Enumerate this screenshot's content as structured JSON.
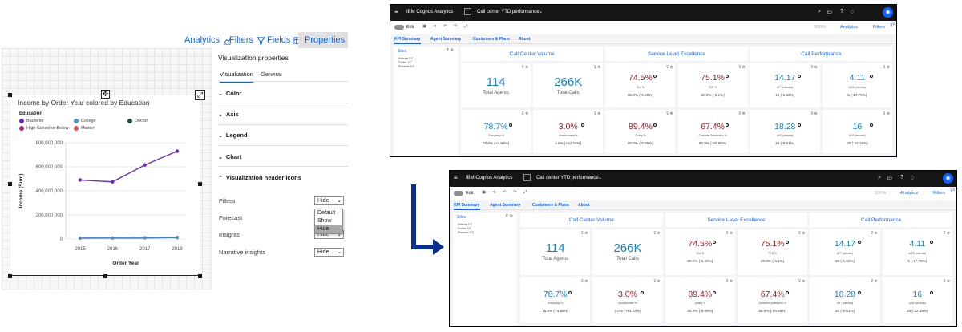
{
  "left": {
    "toptabs": {
      "analytics": "Analytics",
      "filters": "Filters",
      "fields": "Fields",
      "properties": "Properties"
    },
    "chart_title": "Income by Order Year colored by Education",
    "legend_title": "Education",
    "legend": [
      {
        "name": "Bachelor",
        "color": "#6f2dbd"
      },
      {
        "name": "College",
        "color": "#4a90d9"
      },
      {
        "name": "Doctor",
        "color": "#1d4d45"
      },
      {
        "name": "High School or Below",
        "color": "#a22a6a"
      },
      {
        "name": "Master",
        "color": "#e0505a"
      }
    ],
    "props_title": "Visualization properties",
    "subtabs": {
      "visualization": "Visualization",
      "general": "General"
    },
    "sections": {
      "color": "Color",
      "axis": "Axis",
      "legend": "Legend",
      "chart": "Chart",
      "header_icons": "Visualization header icons"
    },
    "rows": {
      "filters": "Filters",
      "forecast": "Forecast",
      "insights": "Insights",
      "narrative": "Narrative insights"
    },
    "hide": "Hide",
    "dropdown_options": [
      "Default",
      "Show",
      "Hide"
    ]
  },
  "chart_data": {
    "type": "line",
    "title": "Income by Order Year colored by Education",
    "xlabel": "Order Year",
    "ylabel": "Income (Sum)",
    "x": [
      "2015",
      "2016",
      "2017",
      "2018"
    ],
    "y_ticks": [
      "0",
      "200,000,000",
      "400,000,000",
      "600,000,000",
      "800,000,000"
    ],
    "ylim": [
      0,
      800000000
    ],
    "series": [
      {
        "name": "Bachelor",
        "color": "#6f2dbd",
        "values": [
          490000000,
          475000000,
          615000000,
          730000000
        ]
      },
      {
        "name": "College",
        "color": "#4a90d9",
        "values": [
          9000000,
          9000000,
          11000000,
          12000000
        ]
      },
      {
        "name": "Doctor",
        "color": "#1d4d45",
        "values": [
          7000000,
          8000000,
          9000000,
          10000000
        ]
      },
      {
        "name": "High School or Below",
        "color": "#a22a6a",
        "values": [
          6000000,
          7000000,
          9000000,
          11000000
        ]
      },
      {
        "name": "Master",
        "color": "#e0505a",
        "values": [
          8000000,
          9000000,
          14000000,
          16000000
        ]
      }
    ],
    "grid": true,
    "legend_position": "top-left"
  },
  "dashboard": {
    "app": "IBM Cognos Analytics",
    "report": "Call center YTD performance",
    "edit": "Edit",
    "zoom": "100%",
    "analytics": "Analytics",
    "filters": "Filters",
    "filter_count": "2",
    "tabs": [
      "KPI Summary",
      "Agent Summary",
      "Customers & Plans",
      "About"
    ],
    "sites_title": "Sites",
    "sites": [
      "Atlanta CC",
      "Dallas CC",
      "Phoenix CC"
    ],
    "headers": [
      "Call Center Volume",
      "Service Level Excellence",
      "Call Performance"
    ],
    "row1": [
      {
        "value": "114",
        "label": "Total Agents",
        "sub": "",
        "color": "#0f7fd0"
      },
      {
        "value": "266K",
        "label": "Total Calls",
        "sub": "",
        "color": "#0f7fd0"
      },
      {
        "value": "74.5%",
        "label": "SLA %",
        "sub": "80.0% (-6.88%)",
        "color": "#9f1c20"
      },
      {
        "value": "75.1%",
        "label": "FCR %",
        "sub": "80.0% (-6.1%)",
        "color": "#9f1c20"
      },
      {
        "value": "14.17",
        "label": "AFT (minutes)",
        "sub": "15 (-5.56%)",
        "color": "#0f7fd0"
      },
      {
        "value": "4.11",
        "label": "AOW (minutes)",
        "sub": "5 (-17.76%)",
        "color": "#0f7fd0"
      }
    ],
    "row2": [
      {
        "value": "78.7%",
        "label": "Occupancy %",
        "sub": "75.0% (+4.98%)",
        "color": "#0f7fd0"
      },
      {
        "value": "3.0%",
        "label": "Abandonment %",
        "sub": "2.0% (+51.04%)",
        "color": "#9f1c20"
      },
      {
        "value": "89.4%",
        "label": "Quality %",
        "sub": "90.0% (-0.65%)",
        "color": "#9f1c20"
      },
      {
        "value": "67.4%",
        "label": "Customer Satisfaction %",
        "sub": "85.0% (-20.65%)",
        "color": "#9f1c20"
      },
      {
        "value": "18.28",
        "label": "AHT (minutes)",
        "sub": "20 (-8.61%)",
        "color": "#0f7fd0"
      },
      {
        "value": "16",
        "label": "ASA (seconds)",
        "sub": "20 (-22.19%)",
        "color": "#0f7fd0"
      }
    ]
  },
  "colors": {
    "accent": "#0f62fe",
    "positive": "#0f7fd0",
    "negative": "#9f1c20",
    "arrow": "#0b2f8f"
  }
}
